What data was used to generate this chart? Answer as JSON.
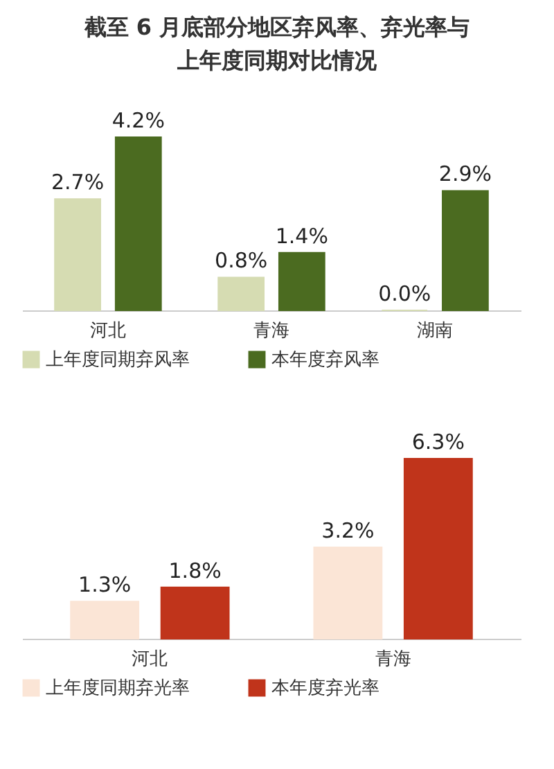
{
  "chart_data": [
    {
      "type": "bar",
      "title": "截至 6 月底部分地区弃风率、弃光率与上年度同期对比情况",
      "categories": [
        "河北",
        "青海",
        "湖南"
      ],
      "legend": "bottom",
      "series": [
        {
          "name": "上年度同期弃风率",
          "color": "#d6dcb2",
          "values": [
            2.7,
            0.8,
            0.0
          ],
          "value_labels": [
            "2.7%",
            "0.8%",
            "0.0%"
          ]
        },
        {
          "name": "本年度弃风率",
          "color": "#4b6b20",
          "values": [
            4.2,
            1.4,
            2.9
          ],
          "value_labels": [
            "4.2%",
            "1.4%",
            "2.9%"
          ]
        }
      ]
    },
    {
      "type": "bar",
      "categories": [
        "河北",
        "青海"
      ],
      "legend": "bottom",
      "series": [
        {
          "name": "上年度同期弃光率",
          "color": "#fbe5d6",
          "values": [
            1.3,
            3.2
          ],
          "value_labels": [
            "1.3%",
            "3.2%"
          ]
        },
        {
          "name": "本年度弃光率",
          "color": "#c0341b",
          "values": [
            1.8,
            6.3
          ],
          "value_labels": [
            "1.8%",
            "6.3%"
          ]
        }
      ]
    }
  ]
}
